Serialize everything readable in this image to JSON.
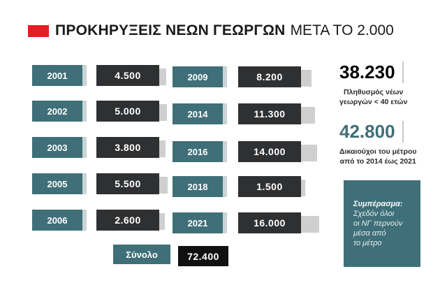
{
  "header": {
    "title_bold": "ΠΡΟΚΗΡΥΞΕΙΣ ΝΕΩΝ ΓΕΩΡΓΩΝ",
    "title_light": "ΜΕΤΑ ΤΟ 2.000",
    "accent_color": "#e31e24"
  },
  "chart_data": {
    "type": "bar",
    "title": "ΠΡΟΚΗΡΥΞΕΙΣ ΝΕΩΝ ΓΕΩΡΓΩΝ ΜΕΤΑ ΤΟ 2.000",
    "categories": [
      "2001",
      "2002",
      "2003",
      "2005",
      "2006",
      "2009",
      "2014",
      "2016",
      "2018",
      "2021"
    ],
    "value_labels": [
      "4.500",
      "5.000",
      "3.800",
      "5.500",
      "2.600",
      "8.200",
      "11.300",
      "14.000",
      "1.500",
      "16.000"
    ],
    "values": [
      4500,
      5000,
      3800,
      5500,
      2600,
      8200,
      11300,
      14000,
      1500,
      16000
    ],
    "total_label": "Σύνολο",
    "total_value": "72.400",
    "colors": {
      "year_tag": "#3f6f78",
      "value_box": "#2f3032",
      "value_bg": "#cfcfcf",
      "total_value": "#111111"
    }
  },
  "stats": [
    {
      "number": "38.230",
      "description_line1": "Πληθυσμός νέων",
      "description_line2": "γεωργών < 40 ετών",
      "color": "#1a1a1a"
    },
    {
      "number": "42.800",
      "description_line1": "Δικαιούχοι του μέτρου",
      "description_line2": "από το 2014 έως 2021",
      "color": "#3f6f78"
    }
  ],
  "conclusion": {
    "title": "Συμπέρασμα:",
    "lines": [
      "Σχεδόν όλοι",
      "οι ΝΓ περνούν",
      "μέσα από",
      "το μέτρο"
    ]
  }
}
